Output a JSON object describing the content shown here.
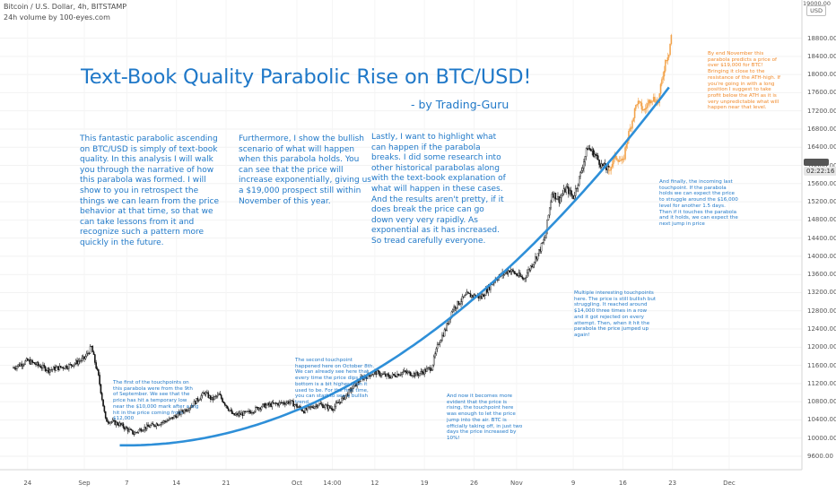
{
  "header": {
    "symbol_line": "Bitcoin / U.S. Dollar, 4h, BITSTAMP",
    "volume_line": "24h volume by 100-eyes.com"
  },
  "title": "Text-Book Quality Parabolic Rise on BTC/USD!",
  "byline": "- by Trading-Guru",
  "paragraphs": [
    "This fantastic parabolic ascending on BTC/USD is simply of text-book quality. In this analysis I will walk you through the narrative of how this parabola was formed. I will show to you in retrospect the things we can learn from the price behavior at that time, so that we can take lessons from it and recognize such a pattern more quickly in the future.",
    "Furthermore, I show the bullish scenario of what will happen when this parabola holds. You can see that the price will increase exponentially, giving us a $19,000 prospect still within November of this year.",
    "Lastly, I want to highlight what can happen if the parabola breaks. I did some research into other historical parabolas along with the text-book explanation of what will happen in these cases. And the results aren't pretty, if it does break the price can go down very very rapidly. As exponential as it has increased. So tread carefully everyone."
  ],
  "notes": [
    "The first of the touchpoints on this parabola were from the 9th of September. We see that the price has hit a temporary low near the $10,000 mark after a big hit in the price coming from $12,000",
    "The second touchpoint happened here on October 8th. We can already see here that every time the price dips the bottom is a bit higher than it used to be. For the first time, you can start to see a bullish trend.",
    "And now it becomes more evident that the price is rising, the touchpoint here was enough to let the price jump into the air. BTC is officially taking off, in just two days the price increased by 10%!",
    "Multiple interesting touchpoints here. The price is still bullish but struggling. It reached around $14,000 three times in a row and it got rejected on every attempt. Then, when it hit the parabola the price jumped up again!",
    "And finally, the incoming last touchpoint. If the parabola holds we can expect the price to struggle around the $16,000 level for another 1.5 days. Then if it touches the parabola and it holds, we can expect the next jump in price",
    "By end November this parabola predicts a price of over $19,000 for BTC! Bringing it close to the resistance of the ATH-high. If you're going in with a long position I suggest to take profit below the ATH as it is very unpredictable what will happen near that level."
  ],
  "axis": {
    "currency": "USD",
    "countdown": "02:22:16",
    "top_tick": "19000.00"
  },
  "colors": {
    "text_blue": "#1f78c8",
    "parabola": "#2e8fd8",
    "projection": "#f2a24a",
    "candle": "#111111"
  },
  "chart_data": {
    "type": "candlestick",
    "title": "Text-Book Quality Parabolic Rise on BTC/USD!",
    "symbol": "BTC/USD",
    "exchange": "BITSTAMP",
    "timeframe": "4h",
    "ylim": [
      9400,
      19100
    ],
    "y_ticks": [
      "9600.00",
      "10000.00",
      "10400.00",
      "10800.00",
      "11200.00",
      "11600.00",
      "12000.00",
      "12400.00",
      "12800.00",
      "13200.00",
      "13600.00",
      "14000.00",
      "14400.00",
      "14800.00",
      "15200.00",
      "15600.00",
      "16000.00",
      "16400.00",
      "16800.00",
      "17200.00",
      "17600.00",
      "18000.00",
      "18400.00",
      "18800.00"
    ],
    "x_ticks": [
      {
        "label": "24",
        "day": -8
      },
      {
        "label": "Sep",
        "day": 0
      },
      {
        "label": "7",
        "day": 6
      },
      {
        "label": "14",
        "day": 13
      },
      {
        "label": "21",
        "day": 20
      },
      {
        "label": "Oct",
        "day": 30
      },
      {
        "label": "14:00",
        "day": 35
      },
      {
        "label": "12",
        "day": 41
      },
      {
        "label": "19",
        "day": 48
      },
      {
        "label": "26",
        "day": 55
      },
      {
        "label": "Nov",
        "day": 61
      },
      {
        "label": "9",
        "day": 69
      },
      {
        "label": "16",
        "day": 76
      },
      {
        "label": "23",
        "day": 83
      },
      {
        "label": "Dec",
        "day": 91
      }
    ],
    "price_path": [
      [
        -10,
        11550
      ],
      [
        -8,
        11700
      ],
      [
        -5,
        11500
      ],
      [
        -2,
        11600
      ],
      [
        0,
        11750
      ],
      [
        1,
        12000
      ],
      [
        2,
        11350
      ],
      [
        3,
        10400
      ],
      [
        5,
        10300
      ],
      [
        7,
        10100
      ],
      [
        8,
        10200
      ],
      [
        10,
        10300
      ],
      [
        12,
        10400
      ],
      [
        13,
        10500
      ],
      [
        15,
        10700
      ],
      [
        17,
        11000
      ],
      [
        18,
        10850
      ],
      [
        19,
        10950
      ],
      [
        21,
        10500
      ],
      [
        23,
        10550
      ],
      [
        25,
        10700
      ],
      [
        27,
        10750
      ],
      [
        29,
        10800
      ],
      [
        31,
        10600
      ],
      [
        33,
        10750
      ],
      [
        35,
        10650
      ],
      [
        37,
        10950
      ],
      [
        39,
        11300
      ],
      [
        41,
        11450
      ],
      [
        43,
        11350
      ],
      [
        45,
        11450
      ],
      [
        47,
        11400
      ],
      [
        49,
        11550
      ],
      [
        50,
        12100
      ],
      [
        51,
        12400
      ],
      [
        52,
        12850
      ],
      [
        54,
        13150
      ],
      [
        56,
        13100
      ],
      [
        58,
        13500
      ],
      [
        60,
        13700
      ],
      [
        61,
        13600
      ],
      [
        62,
        13500
      ],
      [
        64,
        14050
      ],
      [
        65,
        14400
      ],
      [
        66,
        15400
      ],
      [
        67,
        15250
      ],
      [
        68,
        15500
      ],
      [
        69,
        15300
      ],
      [
        70,
        15800
      ],
      [
        71,
        16400
      ],
      [
        72,
        16250
      ],
      [
        73,
        16000
      ],
      [
        74,
        15900
      ]
    ],
    "projection_path": [
      [
        74,
        15900
      ],
      [
        75,
        16200
      ],
      [
        76,
        16050
      ],
      [
        76.5,
        16500
      ],
      [
        77,
        16800
      ],
      [
        78,
        17400
      ],
      [
        79,
        17200
      ],
      [
        80,
        17500
      ],
      [
        81,
        17400
      ],
      [
        81.5,
        17850
      ],
      [
        82,
        18300
      ],
      [
        82.5,
        18500
      ],
      [
        83,
        19050
      ]
    ],
    "parabola": {
      "vertex_day": 6,
      "vertex_price": 9840,
      "end_day": 82.7,
      "end_price": 17760
    }
  }
}
